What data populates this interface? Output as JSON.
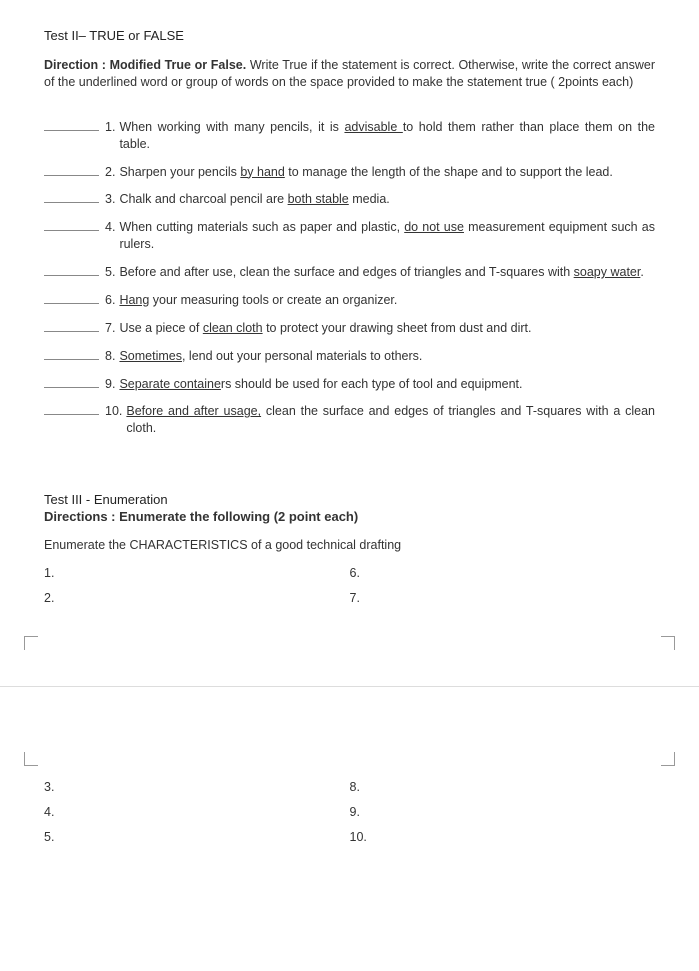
{
  "test2": {
    "title": "Test II– TRUE or FALSE",
    "direction_bold": "Direction : Modified True or False.",
    "direction_rest": " Write True if the statement is correct. Otherwise, write the correct answer of the underlined word or group of words on the space provided to make the statement true ( 2points each)",
    "questions": [
      {
        "num": "1.",
        "pre": " When working with many pencils, it is ",
        "u": "advisable ",
        "post": "to hold them rather than place them on the table."
      },
      {
        "num": "2.",
        "pre": " Sharpen your pencils ",
        "u": "by hand",
        "post": " to manage the length of the shape and to support the lead."
      },
      {
        "num": "3.",
        "pre": " Chalk and charcoal pencil are ",
        "u": "both stable",
        "post": " media."
      },
      {
        "num": "4.",
        "pre": " When cutting materials such as paper and plastic, ",
        "u": "do not use",
        "post": " measurement equipment such as rulers."
      },
      {
        "num": "5.",
        "pre": " Before and after use, clean the surface and edges of triangles and T-squares with ",
        "u": "soapy water",
        "post": "."
      },
      {
        "num": "6.",
        "pre": " ",
        "u": "Hang",
        "post": " your measuring tools or create an organizer."
      },
      {
        "num": "7.",
        "pre": " Use a piece of ",
        "u": "clean cloth",
        "post": " to protect your drawing sheet from dust and dirt."
      },
      {
        "num": "8.",
        "pre": " ",
        "u": "Sometimes,",
        "post": "  lend out your personal materials to others."
      },
      {
        "num": "9.",
        "pre": "",
        "u": " Separate containe",
        "post": "rs should be used for each type of tool and equipment."
      },
      {
        "num": "10.",
        "pre": " ",
        "u": "Before and after usage,",
        "post": "  clean the surface and edges of triangles and T-squares with a clean cloth."
      }
    ]
  },
  "test3": {
    "title": "Test III - Enumeration",
    "sub": "Directions : Enumerate the following (2 point each)",
    "prompt": "Enumerate the CHARACTERISTICS of a good technical drafting",
    "col1_a": [
      "1.",
      "2."
    ],
    "col2_a": [
      "6.",
      "7."
    ],
    "col1_b": [
      "3.",
      "4.",
      "5."
    ],
    "col2_b": [
      "8.",
      "9.",
      "10."
    ]
  }
}
